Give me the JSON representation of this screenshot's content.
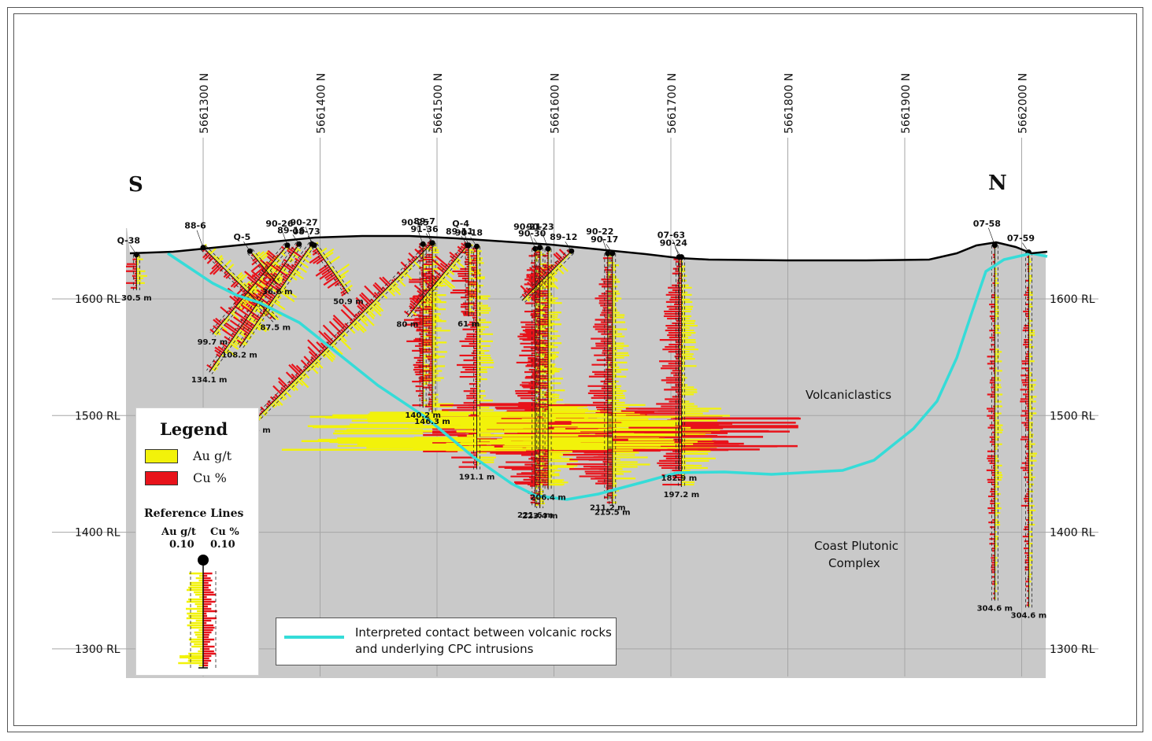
{
  "orientation": {
    "south": "S",
    "north": "N"
  },
  "northings": [
    "5661300 N",
    "5661400 N",
    "5661500 N",
    "5661600 N",
    "5661700 N",
    "5661800 N",
    "5661900 N",
    "5662000 N"
  ],
  "elevations": [
    "1600 RL",
    "1500 RL",
    "1400 RL",
    "1300 RL"
  ],
  "units": {
    "northing_step": 100,
    "elevation_step": 100
  },
  "rocks": {
    "volcaniclastics": "Volcaniclastics",
    "cpc_line1": "Coast Plutonic",
    "cpc_line2": "Complex"
  },
  "legend": {
    "title": "Legend",
    "au_label": "Au g/t",
    "cu_label": "Cu %",
    "au_color": "#f2f20a",
    "cu_color": "#e8131b",
    "ref_title": "Reference Lines",
    "ref_au_label": "Au g/t",
    "ref_au_value": "0.10",
    "ref_cu_label": "Cu %",
    "ref_cu_value": "0.10"
  },
  "contact_legend": {
    "line1": "Interpreted contact between volcanic rocks",
    "line2": "and underlying CPC intrusions",
    "color": "#35dcd8"
  },
  "holes": [
    {
      "id": "Q-38",
      "collar_n": 5661243,
      "collar_rl": 1638,
      "azim": "N",
      "dip": 90,
      "depth_label": "30.5 m"
    },
    {
      "id": "88-6",
      "collar_n": 5661300,
      "collar_rl": 1644,
      "azim": "N",
      "dip": 45,
      "depth_label": "87.5 m"
    },
    {
      "id": "Q-5",
      "collar_n": 5661340,
      "collar_rl": 1641,
      "azim": "N",
      "dip": 50,
      "depth_label": "36.6 m"
    },
    {
      "id": "90-26",
      "collar_n": 5661372,
      "collar_rl": 1646,
      "azim": "S",
      "dip": 50,
      "depth_label": "99.7 m"
    },
    {
      "id": "89-16",
      "collar_n": 5661382,
      "collar_rl": 1647,
      "azim": "S",
      "dip": 55,
      "depth_label": "134.1 m"
    },
    {
      "id": "90-27",
      "collar_n": 5661393,
      "collar_rl": 1647,
      "azim": "S",
      "dip": 55,
      "depth_label": "108.2 m"
    },
    {
      "id": "08-73",
      "collar_n": 5661395,
      "collar_rl": 1646,
      "azim": "N",
      "dip": 55,
      "depth_label": "50.9 m"
    },
    {
      "id": "90-25",
      "collar_n": 5661488,
      "collar_rl": 1647,
      "azim": "N",
      "dip": 90,
      "depth_label": "140.2 m"
    },
    {
      "id": "91-36",
      "collar_n": 5661496,
      "collar_rl": 1648,
      "azim": "N",
      "dip": 90,
      "depth_label": "146.3 m"
    },
    {
      "id": "89-7",
      "collar_n": 5661496,
      "collar_rl": 1648,
      "azim": "S",
      "dip": 45,
      "depth_label": "217.6 m"
    },
    {
      "id": "89-11",
      "collar_n": 5661526,
      "collar_rl": 1646,
      "azim": "S",
      "dip": 50,
      "depth_label": "80 m"
    },
    {
      "id": "Q-4",
      "collar_n": 5661527,
      "collar_rl": 1646,
      "azim": "N",
      "dip": 90,
      "depth_label": "61 m"
    },
    {
      "id": "90-18",
      "collar_n": 5661534,
      "collar_rl": 1645,
      "azim": "N",
      "dip": 90,
      "depth_label": "191.1 m"
    },
    {
      "id": "90-21",
      "collar_n": 5661584,
      "collar_rl": 1643,
      "azim": "N",
      "dip": 90,
      "depth_label": "221.6 m"
    },
    {
      "id": "90-30",
      "collar_n": 5661588,
      "collar_rl": 1644,
      "azim": "N",
      "dip": 90,
      "depth_label": "223.4 m"
    },
    {
      "id": "90-23",
      "collar_n": 5661595,
      "collar_rl": 1643,
      "azim": "N",
      "dip": 90,
      "depth_label": "206.4 m"
    },
    {
      "id": "89-12",
      "collar_n": 5661615,
      "collar_rl": 1641,
      "azim": "S",
      "dip": 45,
      "depth_label": ""
    },
    {
      "id": "90-22",
      "collar_n": 5661646,
      "collar_rl": 1639,
      "azim": "N",
      "dip": 90,
      "depth_label": "211.2 m"
    },
    {
      "id": "90-17",
      "collar_n": 5661650,
      "collar_rl": 1639,
      "azim": "N",
      "dip": 90,
      "depth_label": "215.5 m"
    },
    {
      "id": "07-63",
      "collar_n": 5661707,
      "collar_rl": 1636,
      "azim": "N",
      "dip": 90,
      "depth_label": "182.9 m"
    },
    {
      "id": "90-24",
      "collar_n": 5661709,
      "collar_rl": 1636,
      "azim": "N",
      "dip": 90,
      "depth_label": "197.2 m"
    },
    {
      "id": "07-58",
      "collar_n": 5661977,
      "collar_rl": 1646,
      "azim": "N",
      "dip": 90,
      "depth_label": "304.6 m"
    },
    {
      "id": "07-59",
      "collar_n": 5662006,
      "collar_rl": 1640,
      "azim": "N",
      "dip": 90,
      "depth_label": "304.6 m"
    }
  ]
}
